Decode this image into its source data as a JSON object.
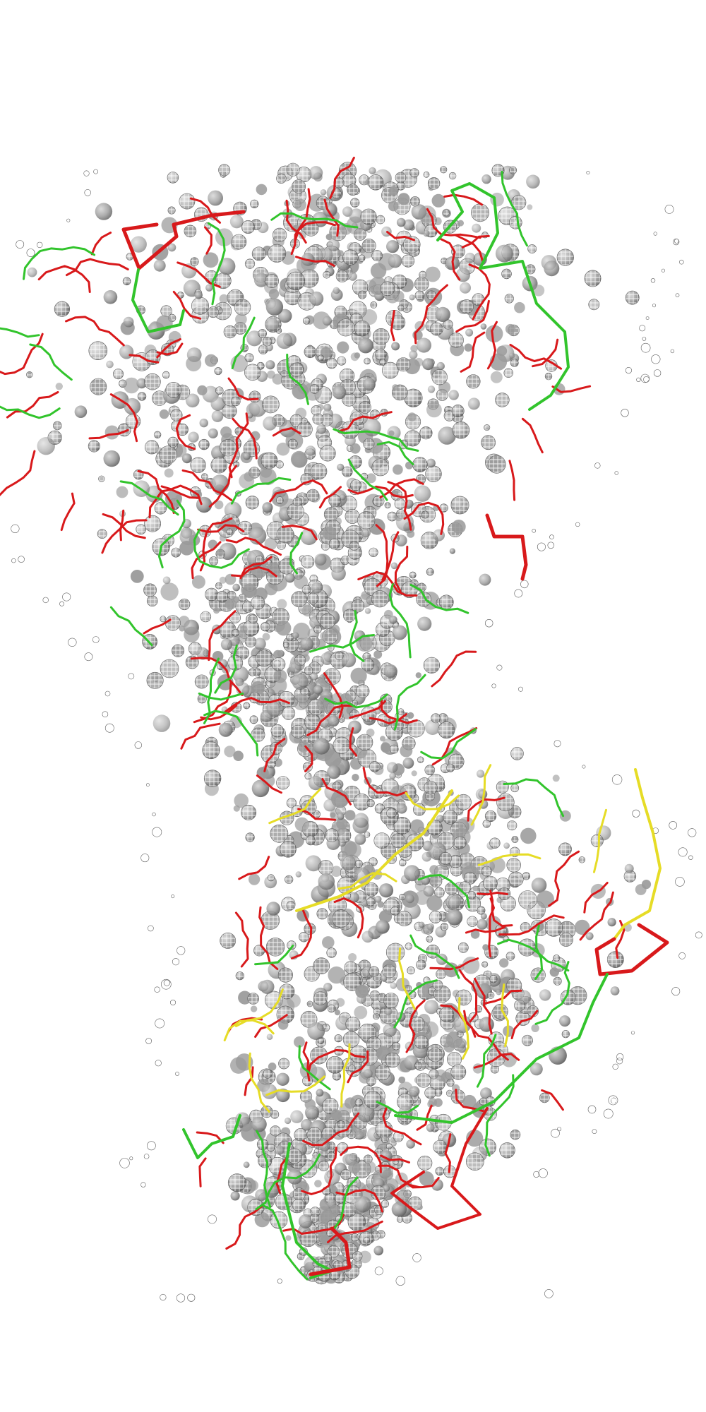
{
  "scene": {
    "background": "#ffffff",
    "density_color": "#9a9a9a",
    "density_dark": "#5e5e5e",
    "mesh_color": "#ffffff",
    "trace_colors": {
      "red": "#d8191b",
      "green": "#32c42c",
      "yellow": "#e6dc26"
    }
  }
}
